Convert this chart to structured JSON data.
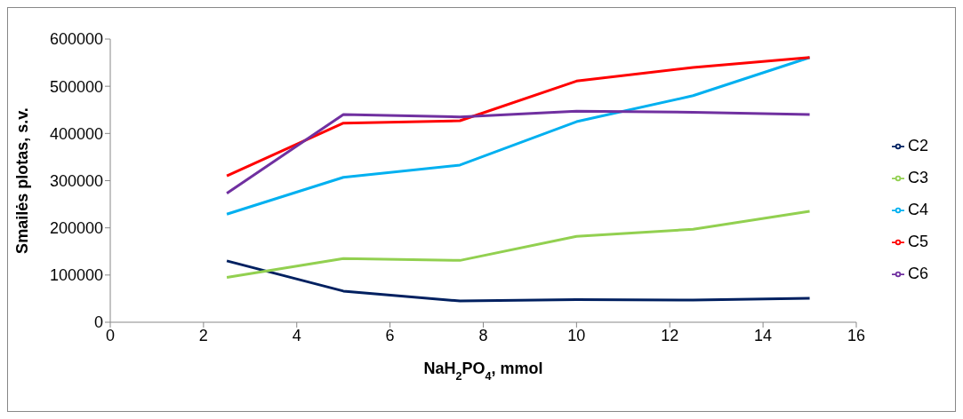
{
  "chart_data": {
    "type": "line",
    "xlabel": "NaH$_{2}$PO$_{4}$, mmol",
    "ylabel": "Smailės plotas, s.v.",
    "x": [
      2.5,
      5,
      7.5,
      10,
      12.5,
      15
    ],
    "series": [
      {
        "name": "C2",
        "color": "#002060",
        "values": [
          130000,
          66000,
          45000,
          48000,
          47000,
          51000
        ]
      },
      {
        "name": "C3",
        "color": "#92d050",
        "values": [
          95000,
          135000,
          131000,
          182000,
          197000,
          235000
        ]
      },
      {
        "name": "C4",
        "color": "#00b0f0",
        "values": [
          229000,
          307000,
          333000,
          425000,
          480000,
          561000
        ]
      },
      {
        "name": "C5",
        "color": "#ff0000",
        "values": [
          310000,
          422000,
          427000,
          511000,
          540000,
          561000
        ]
      },
      {
        "name": "C6",
        "color": "#7030a0",
        "values": [
          273000,
          440000,
          435000,
          447000,
          445000,
          440000
        ]
      }
    ],
    "xlim": [
      0,
      16
    ],
    "xticks": [
      0,
      2,
      4,
      6,
      8,
      10,
      12,
      14,
      16
    ],
    "ylim": [
      0,
      600000
    ],
    "yticks": [
      0,
      100000,
      200000,
      300000,
      400000,
      500000,
      600000
    ],
    "grid": false,
    "legend": "right",
    "marker": "none",
    "line_style": "solid"
  }
}
